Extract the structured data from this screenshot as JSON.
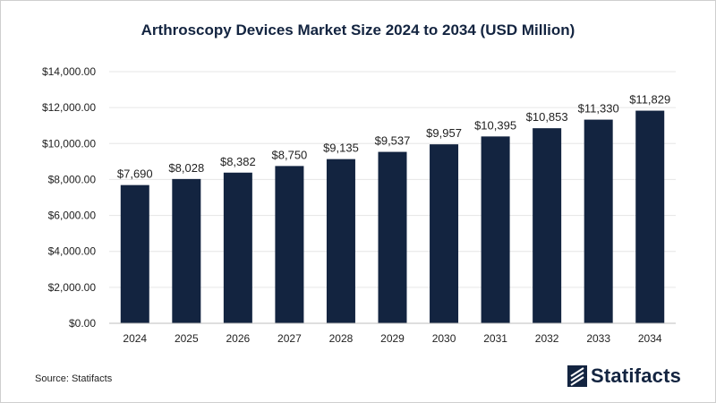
{
  "chart_data": {
    "type": "bar",
    "title": "Arthroscopy Devices Market Size 2024 to 2034 (USD Million)",
    "categories": [
      "2024",
      "2025",
      "2026",
      "2027",
      "2028",
      "2029",
      "2030",
      "2031",
      "2032",
      "2033",
      "2034"
    ],
    "values": [
      7690,
      8028,
      8382,
      8750,
      9135,
      9537,
      9957,
      10395,
      10853,
      11330,
      11829
    ],
    "value_labels": [
      "$7,690",
      "$8,028",
      "$8,382",
      "$8,750",
      "$9,135",
      "$9,537",
      "$9,957",
      "$10,395",
      "$10,853",
      "$11,330",
      "$11,829"
    ],
    "y_ticks": [
      0,
      2000,
      4000,
      6000,
      8000,
      10000,
      12000,
      14000
    ],
    "y_tick_labels": [
      "$0.00",
      "$2,000.00",
      "$4,000.00",
      "$6,000.00",
      "$8,000.00",
      "$10,000.00",
      "$12,000.00",
      "$14,000.00"
    ],
    "ylim": [
      0,
      14000
    ],
    "xlabel": "",
    "ylabel": "",
    "grid": true,
    "legend": "none",
    "bar_color": "#132440",
    "grid_color": "#e6e6e6"
  },
  "footer": {
    "source": "Source: Statifacts",
    "brand": "Statifacts",
    "brand_color": "#132440"
  }
}
